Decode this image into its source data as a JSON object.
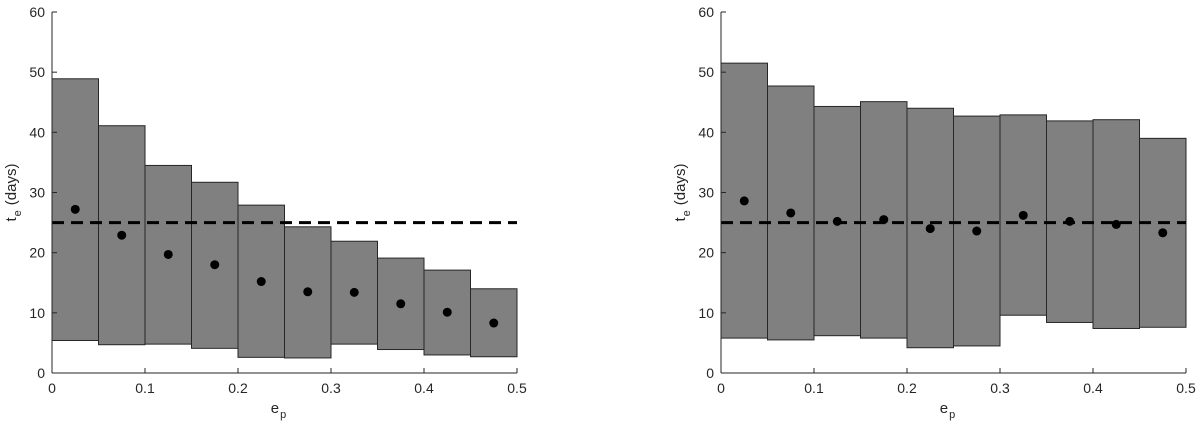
{
  "colors": {
    "bar_fill": "#808080",
    "bar_stroke": "#262626",
    "point": "#000000",
    "reference_line": "#000000",
    "axis": "#262626"
  },
  "chart_data": [
    {
      "type": "bar",
      "title": "",
      "xlabel": "e",
      "xlabel_sub": "p",
      "ylabel": "t",
      "ylabel_sub": "e",
      "ylabel_unit": "(days)",
      "xlim": [
        0,
        0.5
      ],
      "ylim": [
        0,
        60
      ],
      "xticks": [
        0,
        0.1,
        0.2,
        0.3,
        0.4,
        0.5
      ],
      "xtick_labels": [
        "0",
        "0.1",
        "0.2",
        "0.3",
        "0.4",
        "0.5"
      ],
      "yticks": [
        0,
        10,
        20,
        30,
        40,
        50,
        60
      ],
      "ytick_labels": [
        "0",
        "10",
        "20",
        "30",
        "40",
        "50",
        "60"
      ],
      "grid": false,
      "bin_edges": [
        0,
        0.05,
        0.1,
        0.15,
        0.2,
        0.25,
        0.3,
        0.35,
        0.4,
        0.45,
        0.5
      ],
      "range_low": [
        5.4,
        4.7,
        4.8,
        4.1,
        2.6,
        2.5,
        4.8,
        3.9,
        3.0,
        2.7
      ],
      "range_high": [
        48.9,
        41.1,
        34.5,
        31.7,
        27.9,
        24.3,
        21.9,
        19.1,
        17.1,
        14.0
      ],
      "points_x": [
        0.025,
        0.075,
        0.125,
        0.175,
        0.225,
        0.275,
        0.325,
        0.375,
        0.425,
        0.475
      ],
      "points_y": [
        27.2,
        22.9,
        19.7,
        18.0,
        15.2,
        13.5,
        13.4,
        11.5,
        10.1,
        8.3
      ],
      "reference_y": 25
    },
    {
      "type": "bar",
      "title": "",
      "xlabel": "e",
      "xlabel_sub": "p",
      "ylabel": "t",
      "ylabel_sub": "e",
      "ylabel_unit": "(days)",
      "xlim": [
        0,
        0.5
      ],
      "ylim": [
        0,
        60
      ],
      "xticks": [
        0,
        0.1,
        0.2,
        0.3,
        0.4,
        0.5
      ],
      "xtick_labels": [
        "0",
        "0.1",
        "0.2",
        "0.3",
        "0.4",
        "0.5"
      ],
      "yticks": [
        0,
        10,
        20,
        30,
        40,
        50,
        60
      ],
      "ytick_labels": [
        "0",
        "10",
        "20",
        "30",
        "40",
        "50",
        "60"
      ],
      "grid": false,
      "bin_edges": [
        0,
        0.05,
        0.1,
        0.15,
        0.2,
        0.25,
        0.3,
        0.35,
        0.4,
        0.45,
        0.5
      ],
      "range_low": [
        5.8,
        5.5,
        6.2,
        5.8,
        4.2,
        4.5,
        9.6,
        8.4,
        7.4,
        7.6
      ],
      "range_high": [
        51.5,
        47.7,
        44.3,
        45.1,
        44.0,
        42.7,
        42.9,
        41.9,
        42.1,
        39.0
      ],
      "points_x": [
        0.025,
        0.075,
        0.125,
        0.175,
        0.225,
        0.275,
        0.325,
        0.375,
        0.425,
        0.475
      ],
      "points_y": [
        28.6,
        26.6,
        25.2,
        25.5,
        24.0,
        23.6,
        26.2,
        25.2,
        24.7,
        23.3
      ],
      "reference_y": 25
    }
  ]
}
